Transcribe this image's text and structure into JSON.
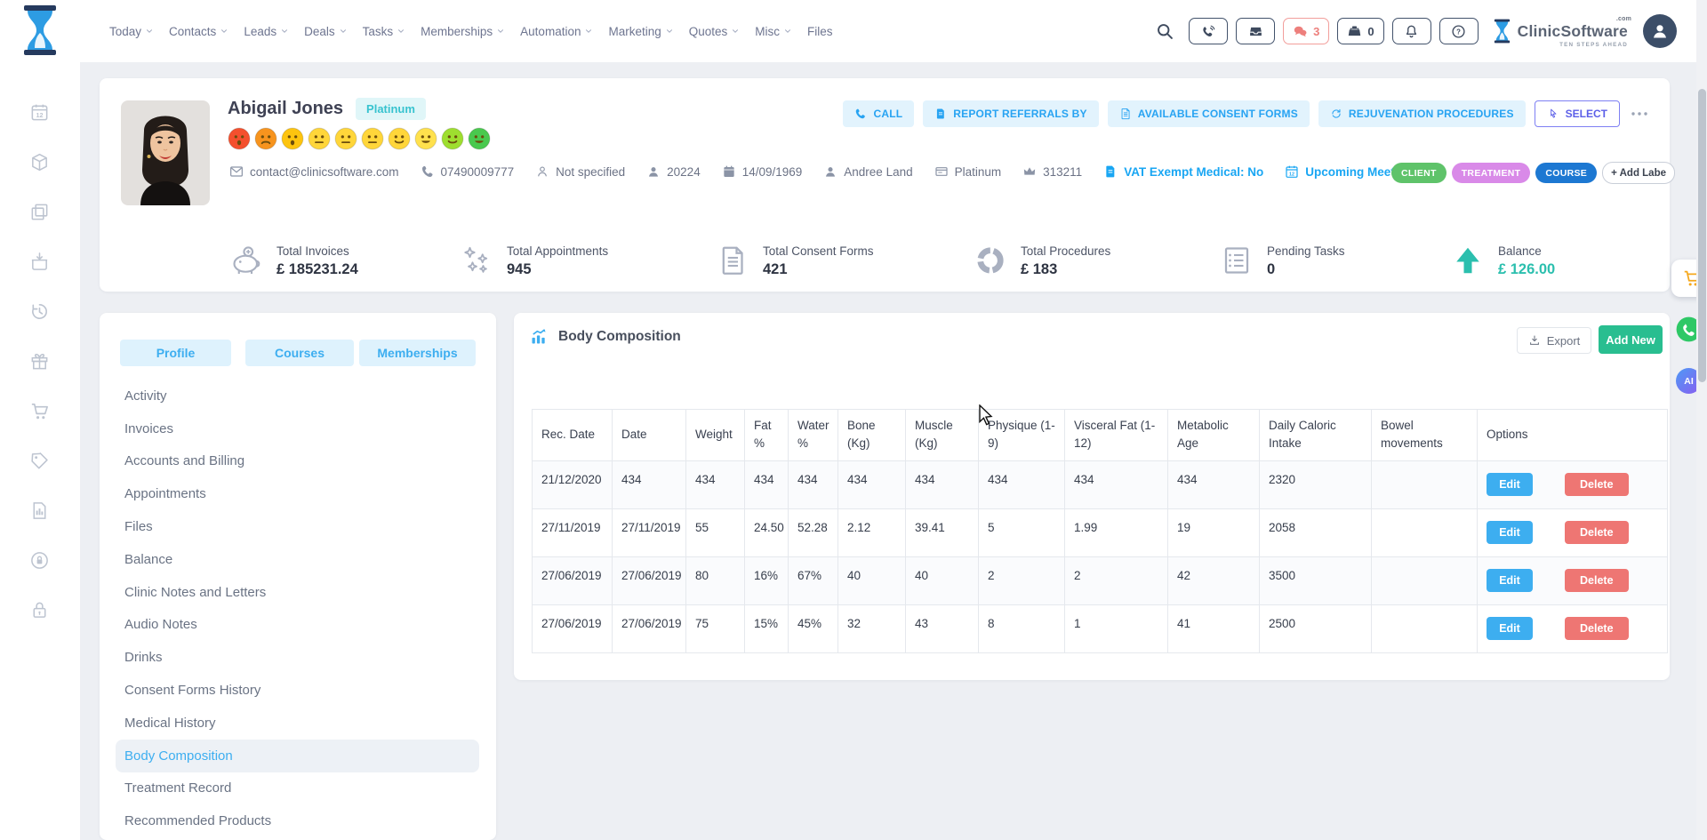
{
  "brand": {
    "name": "ClinicSoftware",
    "tld": ".com",
    "tagline": "TEN STEPS AHEAD"
  },
  "nav": {
    "items": [
      {
        "label": "Today",
        "dropdown": true
      },
      {
        "label": "Contacts",
        "dropdown": true
      },
      {
        "label": "Leads",
        "dropdown": true
      },
      {
        "label": "Deals",
        "dropdown": true
      },
      {
        "label": "Tasks",
        "dropdown": true
      },
      {
        "label": "Memberships",
        "dropdown": true
      },
      {
        "label": "Automation",
        "dropdown": true
      },
      {
        "label": "Marketing",
        "dropdown": true
      },
      {
        "label": "Quotes",
        "dropdown": true
      },
      {
        "label": "Misc",
        "dropdown": true
      },
      {
        "label": "Files",
        "dropdown": false
      }
    ]
  },
  "topbar": {
    "buttons": [
      {
        "name": "call-center",
        "icon": "phone-ring"
      },
      {
        "name": "inbox",
        "icon": "inbox"
      },
      {
        "name": "chat",
        "icon": "chat",
        "badge": "3",
        "alert": true
      },
      {
        "name": "pos",
        "icon": "register",
        "badge": "0"
      },
      {
        "name": "notifications",
        "icon": "bell"
      },
      {
        "name": "help",
        "icon": "help"
      }
    ]
  },
  "rail": {
    "items": [
      {
        "name": "calendar",
        "icon": "cal-date"
      },
      {
        "name": "packages",
        "icon": "package"
      },
      {
        "name": "pages",
        "icon": "copy"
      },
      {
        "name": "orders",
        "icon": "basket-in"
      },
      {
        "name": "history",
        "icon": "history"
      },
      {
        "name": "gifts",
        "icon": "gift"
      },
      {
        "name": "shop",
        "icon": "cart"
      },
      {
        "name": "pricing",
        "icon": "price-tag"
      },
      {
        "name": "reports",
        "icon": "chart-doc"
      },
      {
        "name": "privacy",
        "icon": "user-shield"
      },
      {
        "name": "security",
        "icon": "padlock"
      }
    ]
  },
  "patient": {
    "name": "Abigail Jones",
    "tier_badge": "Platinum",
    "mood_scale": [
      {
        "color": "#f4502e",
        "mouth": "sad-open"
      },
      {
        "color": "#f7941e",
        "mouth": "frown"
      },
      {
        "color": "#fdc40f",
        "mouth": "sad-open"
      },
      {
        "color": "#ffd63a",
        "mouth": "flat"
      },
      {
        "color": "#ffd63a",
        "mouth": "flat"
      },
      {
        "color": "#ffd63a",
        "mouth": "flat"
      },
      {
        "color": "#ffd63a",
        "mouth": "smile"
      },
      {
        "color": "#ffe14d",
        "mouth": "grin"
      },
      {
        "color": "#9ede2f",
        "mouth": "smile"
      },
      {
        "color": "#49c94e",
        "mouth": "grin"
      }
    ],
    "contacts": [
      {
        "name": "email",
        "icon": "envelope",
        "text": "contact@clinicsoftware.com"
      },
      {
        "name": "phone",
        "icon": "phone",
        "text": "07490009777"
      },
      {
        "name": "address",
        "icon": "person-o",
        "text": "Not specified"
      },
      {
        "name": "client-id",
        "icon": "person",
        "text": "20224"
      },
      {
        "name": "dob",
        "icon": "calendar",
        "text": "14/09/1969"
      },
      {
        "name": "owner",
        "icon": "person",
        "text": "Andree Land"
      },
      {
        "name": "membership",
        "icon": "id-card",
        "text": "Platinum"
      },
      {
        "name": "loyalty",
        "icon": "crown",
        "text": "313211"
      },
      {
        "name": "vat",
        "icon": "doc-badge",
        "text": "VAT Exempt Medical: No",
        "accent": true
      },
      {
        "name": "meetings",
        "icon": "calendar-12",
        "text": "Upcoming Meetings",
        "accent": true
      }
    ],
    "labels": [
      {
        "text": "CLIENT",
        "color": "#5fc36a"
      },
      {
        "text": "TREATMENT",
        "color": "#d98ae8"
      },
      {
        "text": "COURSE",
        "color": "#1d78d2"
      }
    ],
    "add_label": "+ Add Labe",
    "actions": [
      {
        "label": "CALL",
        "icon": "phone"
      },
      {
        "label": "REPORT REFERRALS BY",
        "icon": "doc-badge"
      },
      {
        "label": "AVAILABLE CONSENT FORMS",
        "icon": "doc-lines"
      },
      {
        "label": "REJUVENATION PROCEDURES",
        "icon": "renew"
      }
    ],
    "select_label": "SELECT"
  },
  "stats": {
    "items": [
      {
        "icon": "piggy",
        "label": "Total Invoices",
        "value": "£ 185231.24"
      },
      {
        "icon": "sparkles",
        "label": "Total Appointments",
        "value": "945"
      },
      {
        "icon": "doc-lines",
        "label": "Total Consent Forms",
        "value": "421"
      },
      {
        "icon": "donut",
        "label": "Total Procedures",
        "value": "£ 183"
      },
      {
        "icon": "task-list",
        "label": "Pending Tasks",
        "value": "0"
      },
      {
        "icon": "arrow-up",
        "label": "Balance",
        "value": "£ 126.00",
        "accent": true
      }
    ]
  },
  "sidebar": {
    "tabs": [
      "Profile",
      "Courses",
      "Memberships"
    ],
    "items": [
      "Activity",
      "Invoices",
      "Accounts and Billing",
      "Appointments",
      "Files",
      "Balance",
      "Clinic Notes and Letters",
      "Audio Notes",
      "Drinks",
      "Consent Forms History",
      "Medical History",
      "Body Composition",
      "Treatment Record",
      "Recommended Products"
    ],
    "active": "Body Composition"
  },
  "panel": {
    "title": "Body Composition",
    "export_label": "Export",
    "add_new_label": "Add New"
  },
  "table": {
    "columns": [
      "Rec. Date",
      "Date",
      "Weight",
      "Fat %",
      "Water %",
      "Bone (Kg)",
      "Muscle (Kg)",
      "Physique (1-9)",
      "Visceral Fat (1-12)",
      "Metabolic Age",
      "Daily Caloric Intake",
      "Bowel movements",
      "Options"
    ],
    "rows": [
      {
        "cells": [
          "21/12/2020",
          "434",
          "434",
          "434",
          "434",
          "434",
          "434",
          "434",
          "434",
          "434",
          "2320",
          ""
        ]
      },
      {
        "cells": [
          "27/11/2019",
          "27/11/2019",
          "55",
          "24.50",
          "52.28",
          "2.12",
          "39.41",
          "5",
          "1.99",
          "19",
          "2058",
          ""
        ]
      },
      {
        "cells": [
          "27/06/2019",
          "27/06/2019",
          "80",
          "16%",
          "67%",
          "40",
          "40",
          "2",
          "2",
          "42",
          "3500",
          ""
        ]
      },
      {
        "cells": [
          "27/06/2019",
          "27/06/2019",
          "75",
          "15%",
          "45%",
          "32",
          "43",
          "8",
          "1",
          "41",
          "2500",
          ""
        ]
      }
    ],
    "edit_label": "Edit",
    "delete_label": "Delete"
  },
  "floating": {
    "ai_label": "AI"
  },
  "colors": {
    "accent": "#3daef0",
    "green": "#29be90",
    "red": "#ee7673",
    "teal": "#2bbfae",
    "tier_bg": "#e0f6f8",
    "tier_text": "#38c3cf",
    "label_client": "#5fc36a",
    "label_treatment": "#d98ae8",
    "label_course": "#1d78d2"
  }
}
